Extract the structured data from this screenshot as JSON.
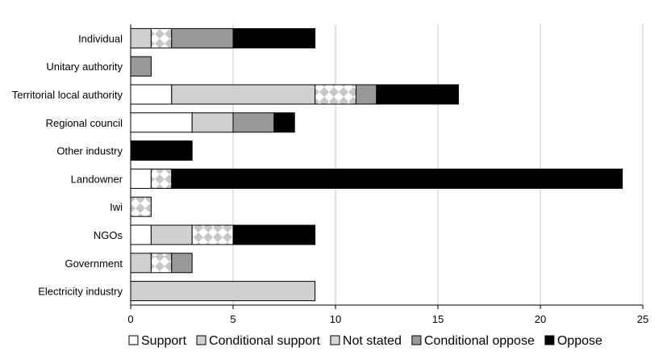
{
  "chart_data": {
    "type": "bar",
    "orientation": "horizontal",
    "stacked": true,
    "categories": [
      "Individual",
      "Unitary authority",
      "Territorial local authority",
      "Regional council",
      "Other industry",
      "Landowner",
      "Iwi",
      "NGOs",
      "Government",
      "Electricity industry"
    ],
    "series": [
      {
        "name": "Support",
        "color": "#ffffff",
        "pattern": "solid",
        "values": [
          0,
          0,
          2,
          3,
          0,
          1,
          0,
          1,
          0,
          0
        ]
      },
      {
        "name": "Conditional support",
        "color": "#d0d0d0",
        "pattern": "solid",
        "values": [
          1,
          0,
          7,
          2,
          0,
          0,
          0,
          2,
          1,
          9
        ]
      },
      {
        "name": "Not stated",
        "color": "#c8c8c8",
        "pattern": "checker",
        "values": [
          1,
          0,
          2,
          0,
          0,
          1,
          1,
          2,
          1,
          0
        ]
      },
      {
        "name": "Conditional oppose",
        "color": "#999999",
        "pattern": "solid",
        "values": [
          3,
          1,
          1,
          2,
          0,
          0,
          0,
          0,
          1,
          0
        ]
      },
      {
        "name": "Oppose",
        "color": "#000000",
        "pattern": "solid",
        "values": [
          4,
          0,
          4,
          1,
          3,
          22,
          0,
          4,
          0,
          0
        ]
      }
    ],
    "xlim": [
      0,
      25
    ],
    "xticks": [
      0,
      5,
      10,
      15,
      20,
      25
    ],
    "grid": "vertical",
    "legend_position": "bottom"
  }
}
